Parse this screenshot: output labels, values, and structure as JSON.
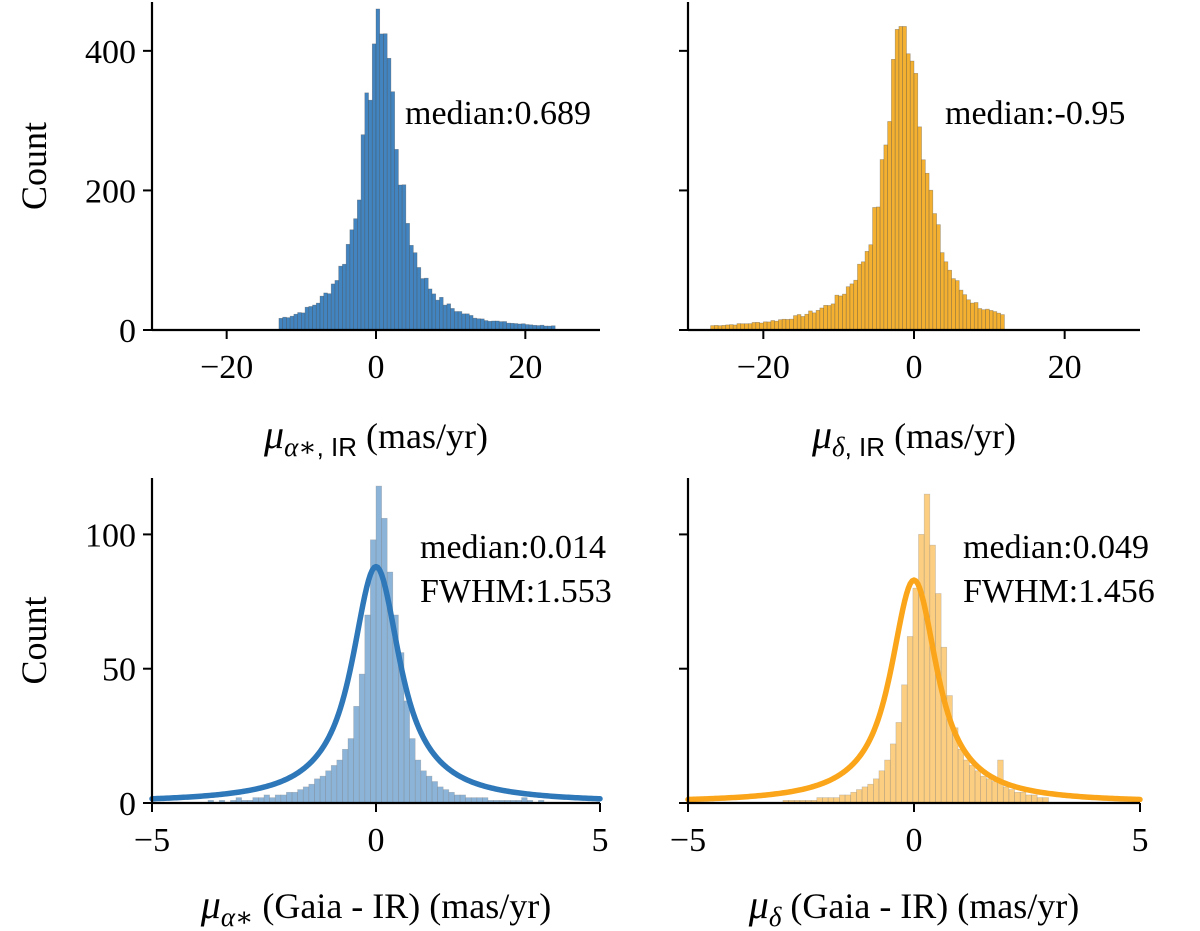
{
  "chart_data": [
    {
      "type": "histogram",
      "panel": "top-left",
      "color": "#2E77B8",
      "xlim": [
        -30,
        30
      ],
      "ylim": [
        0,
        470
      ],
      "xticks": [
        -20,
        0,
        20
      ],
      "yticks": [
        0,
        200,
        400
      ],
      "xtick_labels": [
        "−20",
        "0",
        "20"
      ],
      "ytick_labels": [
        "0",
        "200",
        "400"
      ],
      "ylabel": "Count",
      "xlabel": {
        "symbol": "μ",
        "subscript": "α∗",
        "subscript_roman": ", IR",
        "unit": "(mas/yr)"
      },
      "annotations": [
        "median:0.689"
      ],
      "center": 0.6,
      "gamma": 2.6,
      "peak": 460,
      "bin_width": 0.5,
      "visible_range": [
        -13,
        24
      ]
    },
    {
      "type": "histogram",
      "panel": "top-right",
      "color": "#F2A71B",
      "xlim": [
        -30,
        30
      ],
      "ylim": [
        0,
        470
      ],
      "xticks": [
        -20,
        0,
        20
      ],
      "yticks": [
        0,
        200,
        400
      ],
      "xtick_labels": [
        "−20",
        "0",
        "20"
      ],
      "ytick_labels": [],
      "ylabel": "",
      "xlabel": {
        "symbol": "μ",
        "subscript": "δ",
        "subscript_roman": ", IR",
        "unit": "(mas/yr)"
      },
      "annotations": [
        "median:-0.95"
      ],
      "center": -0.9,
      "gamma": 2.8,
      "peak": 435,
      "bin_width": 0.5,
      "visible_range": [
        -27,
        12
      ]
    },
    {
      "type": "histogram+kde",
      "panel": "bottom-left",
      "color": "#2E77B8",
      "xlim": [
        -5,
        5
      ],
      "ylim": [
        0,
        121
      ],
      "xticks": [
        -5,
        0,
        5
      ],
      "yticks": [
        0,
        50,
        100
      ],
      "xtick_labels": [
        "−5",
        "0",
        "5"
      ],
      "ytick_labels": [
        "0",
        "50",
        "100"
      ],
      "ylabel": "Count",
      "xlabel": {
        "symbol": "μ",
        "subscript": "α∗",
        "subscript_roman": "",
        "unit": "(Gaia - IR) (mas/yr)"
      },
      "annotations": [
        "median:0.014",
        "FWHM:1.553"
      ],
      "bars": [
        1,
        0,
        1,
        0,
        1,
        2,
        1,
        1,
        2,
        2,
        3,
        2,
        3,
        3,
        4,
        4,
        5,
        6,
        7,
        9,
        10,
        12,
        14,
        16,
        20,
        24,
        36,
        48,
        70,
        98,
        118,
        106,
        86,
        70,
        56,
        38,
        24,
        16,
        12,
        10,
        8,
        6,
        5,
        4,
        3,
        3,
        2,
        2,
        2,
        2,
        1,
        1,
        1,
        1,
        1,
        1,
        2,
        1,
        0,
        1,
        0,
        0,
        0
      ],
      "bar_start": -3.75,
      "bin_width": 0.125,
      "kde": {
        "center": 0.0,
        "peak": 88,
        "fwhm": 1.553
      }
    },
    {
      "type": "histogram+kde",
      "panel": "bottom-right",
      "color": "#FAA51A",
      "xlim": [
        -5,
        5
      ],
      "ylim": [
        0,
        121
      ],
      "xticks": [
        -5,
        0,
        5
      ],
      "yticks": [
        0,
        50,
        100
      ],
      "xtick_labels": [
        "−5",
        "0",
        "5"
      ],
      "ytick_labels": [],
      "ylabel": "",
      "xlabel": {
        "symbol": "μ",
        "subscript": "δ",
        "subscript_roman": "",
        "unit": "(Gaia - IR) (mas/yr)"
      },
      "annotations": [
        "median:0.049",
        "FWHM:1.456"
      ],
      "bars": [
        1,
        1,
        1,
        1,
        1,
        1,
        2,
        2,
        2,
        2,
        3,
        3,
        4,
        5,
        6,
        7,
        9,
        12,
        16,
        22,
        30,
        44,
        62,
        80,
        100,
        115,
        96,
        78,
        58,
        40,
        28,
        20,
        16,
        14,
        12,
        10,
        9,
        8,
        16,
        6,
        5,
        4,
        4,
        3,
        3,
        2,
        2
      ],
      "bar_start": -2.9,
      "bin_width": 0.125,
      "kde": {
        "center": 0.0,
        "peak": 83,
        "fwhm": 1.456
      }
    }
  ]
}
